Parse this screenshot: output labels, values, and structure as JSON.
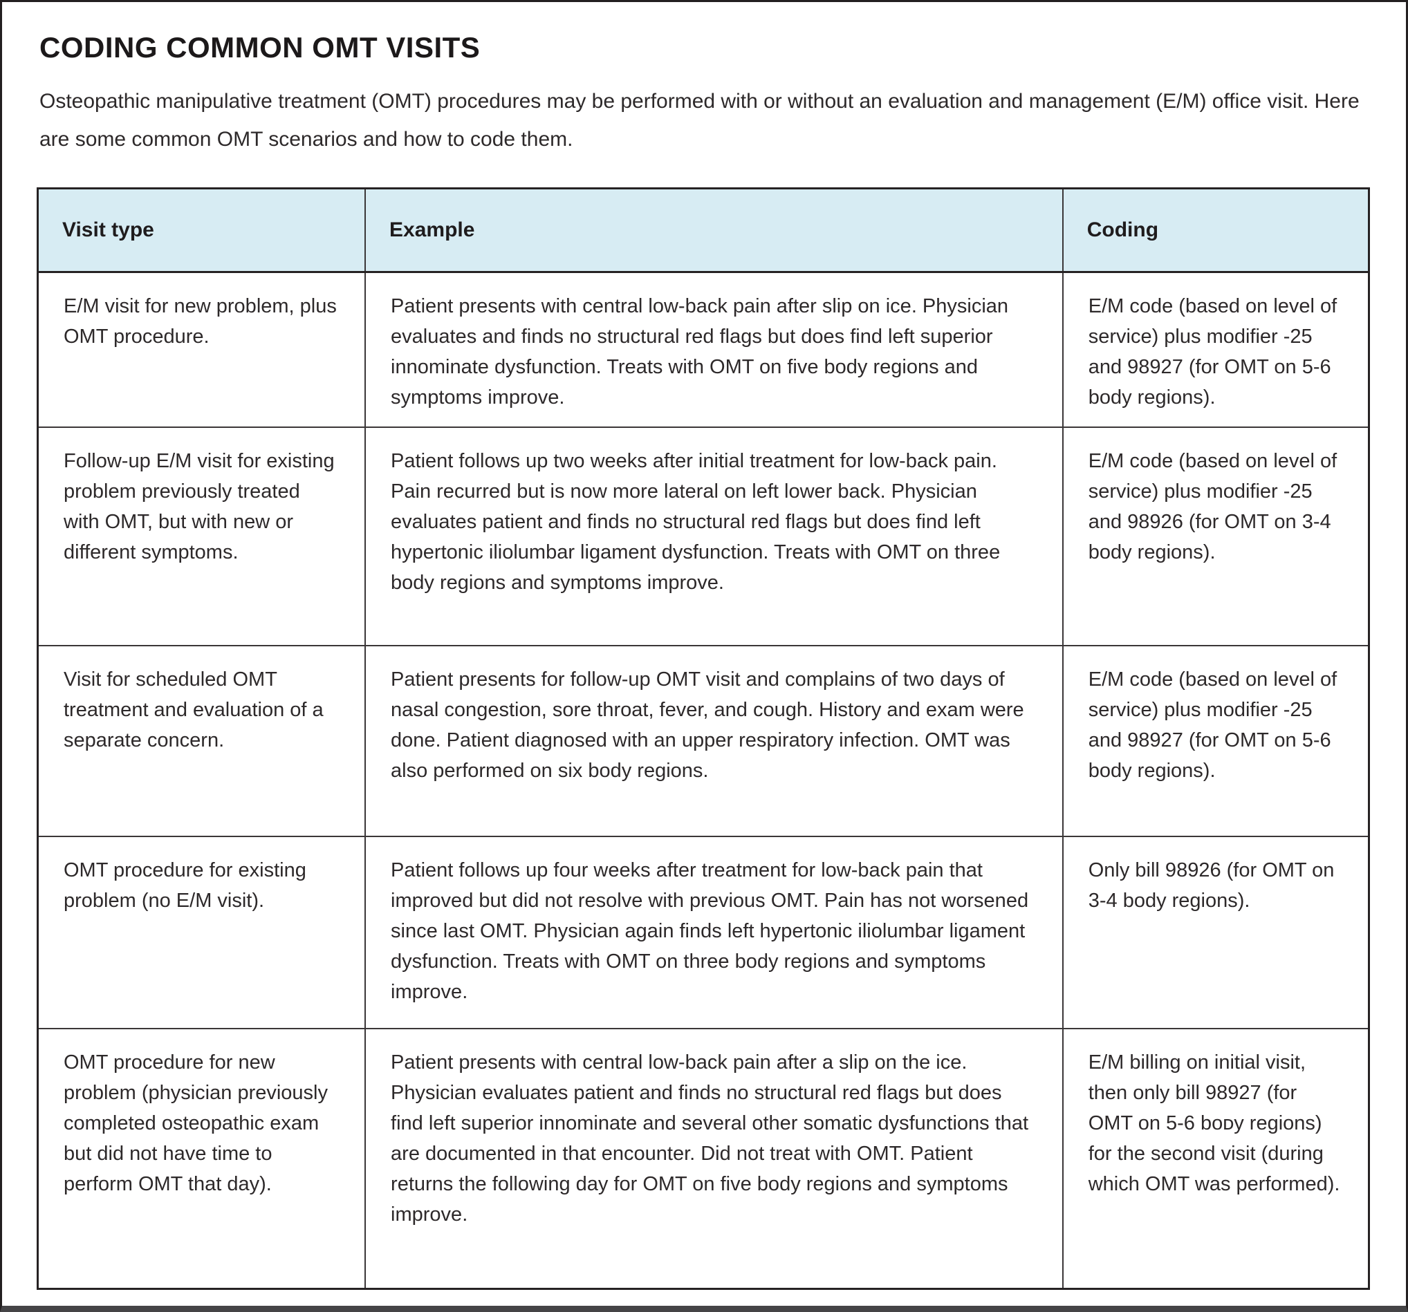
{
  "title": "CODING COMMON OMT VISITS",
  "intro": "Osteopathic manipulative treatment (OMT) procedures may be performed with or without an evaluation and management (E/M) office visit. Here are some common OMT scenarios and how to code them.",
  "table": {
    "columns": [
      "Visit type",
      "Example",
      "Coding"
    ],
    "rows": [
      {
        "visit_type": "E/M visit for new problem, plus OMT procedure.",
        "example": "Patient presents with central low-back pain after slip on ice. Physician evaluates and finds no structural red flags but does find left superior innominate dysfunction. Treats with OMT on five body regions and symptoms improve.",
        "coding": "E/M code (based on level of service) plus modifier -25 and 98927 (for OMT on 5-6 body regions)."
      },
      {
        "visit_type": "Follow-up E/M visit for existing problem previously treated with OMT, but with new or different symptoms.",
        "example": "Patient follows up two weeks after initial treatment for low-back pain. Pain recurred but is now more lateral on left lower back. Physician evaluates patient and finds no structural red flags but does find left hypertonic iliolumbar ligament dysfunction. Treats with OMT on three body regions and symptoms improve.",
        "coding": "E/M code (based on level of service) plus modifier -25 and 98926 (for OMT on 3-4 body regions)."
      },
      {
        "visit_type": "Visit for scheduled OMT treatment and evaluation of a separate concern.",
        "example": "Patient presents for follow-up OMT visit and complains of two days of nasal congestion, sore throat, fever, and cough. History and exam were done. Patient diagnosed with an upper respiratory infection. OMT was also performed on six body regions.",
        "coding": "E/M code (based on level of service) plus modifier -25 and 98927 (for OMT on 5-6 body regions)."
      },
      {
        "visit_type": "OMT procedure for existing problem (no E/M visit).",
        "example": "Patient follows up four weeks after treatment for low-back pain that improved but did not resolve with previous OMT. Pain has not worsened since last OMT. Physician again finds left hypertonic iliolumbar ligament dysfunction. Treats with OMT on three body regions and symptoms improve.",
        "coding": "Only bill 98926 (for OMT on 3-4 body regions)."
      },
      {
        "visit_type": "OMT procedure for new problem (physician previously completed osteopathic exam but did not have time to perform OMT that day).",
        "example": "Patient presents with central low-back pain after a slip on the ice. Physician evaluates patient and finds no structural red flags but does find left superior innominate and several other somatic dysfunctions that are documented in that encounter. Did not treat with OMT. Patient returns the following day for OMT on five body regions and symptoms improve.",
        "coding": "E/M billing on initial visit, then only bill 98927 (for OMT on 5-6 boᴅy regions) for the second visit (during which OMT was performed)."
      }
    ]
  },
  "colors": {
    "header_bg": "#d7ecf3",
    "border": "#231f20",
    "bottom_bar": "#454446",
    "text": "#2d292a"
  }
}
